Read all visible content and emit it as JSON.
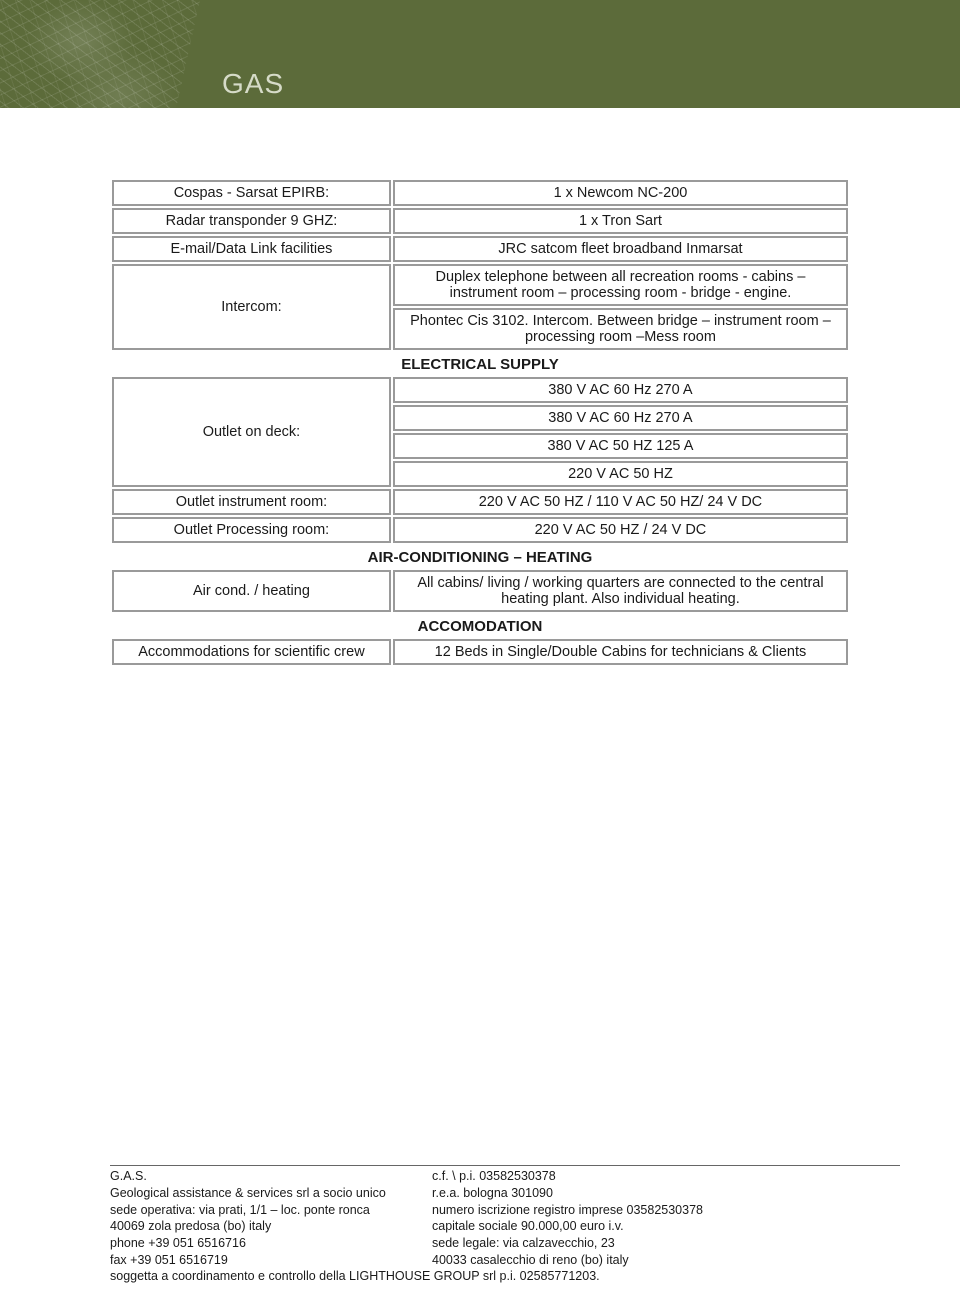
{
  "header": {
    "title": "GAS"
  },
  "colors": {
    "header_bg": "#5c6b3a",
    "header_text": "#d6dbc8",
    "cell_border": "#9a9a9a",
    "text": "#1a1a1a",
    "page_bg": "#ffffff"
  },
  "typography": {
    "body_family": "Verdana",
    "body_size_pt": 11,
    "title_size_pt": 21,
    "section_title_weight": 700
  },
  "sections": {
    "comm": {
      "rows": [
        {
          "label": "Cospas - Sarsat EPIRB:",
          "value": "1 x Newcom NC-200"
        },
        {
          "label": "Radar transponder 9 GHZ:",
          "value": "1 x Tron Sart"
        },
        {
          "label": "E-mail/Data Link facilities",
          "value": "JRC satcom  fleet broadband Inmarsat"
        }
      ],
      "intercom": {
        "label": "Intercom:",
        "values": [
          "Duplex telephone between all recreation rooms - cabins – instrument room – processing room - bridge - engine.",
          "Phontec Cis 3102. Intercom. Between bridge – instrument room – processing room –Mess room"
        ]
      }
    },
    "electrical": {
      "title": "ELECTRICAL SUPPLY",
      "outlet_deck": {
        "label": "Outlet on deck:",
        "values": [
          "380 V AC 60 Hz 270 A",
          "380  V AC 60 Hz 270 A",
          "380 V AC 50 HZ 125 A",
          "220 V AC 50 HZ"
        ]
      },
      "rows": [
        {
          "label": "Outlet instrument room:",
          "value": "220 V AC 50 HZ / 110 V AC 50 HZ/ 24 V DC"
        },
        {
          "label": "Outlet Processing room:",
          "value": "220 V AC 50 HZ / 24  V DC"
        }
      ]
    },
    "aircond": {
      "title": "AIR-CONDITIONING – HEATING",
      "row": {
        "label": "Air cond. / heating",
        "value": "All cabins/ living / working quarters are connected to the central heating plant. Also individual heating."
      }
    },
    "accom": {
      "title": "ACCOMODATION",
      "row": {
        "label": "Accommodations for scientific crew",
        "value": "12  Beds in Single/Double Cabins for technicians & Clients"
      }
    }
  },
  "footer": {
    "left": [
      "G.A.S.",
      "Geological assistance & services srl a socio unico",
      "sede operativa: via prati, 1/1 – loc. ponte ronca",
      "40069 zola predosa (bo) italy",
      "phone +39 051 6516716",
      "fax +39 051 6516719"
    ],
    "right": [
      "c.f. \\ p.i. 03582530378",
      "r.e.a. bologna 301090",
      "numero iscrizione registro imprese 03582530378",
      "capitale sociale 90.000,00 euro i.v.",
      "sede legale: via calzavecchio, 23",
      "40033 casalecchio di reno (bo) italy"
    ],
    "last": "soggetta a coordinamento e controllo della LIGHTHOUSE GROUP srl p.i. 02585771203."
  }
}
